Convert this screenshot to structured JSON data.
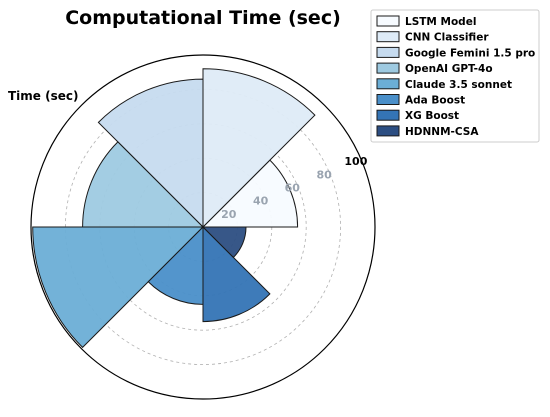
{
  "chart_data": {
    "type": "polar-bar",
    "title": "Computational Time (sec)",
    "radial_axis_label": "Time (sec)",
    "rlim": [
      0,
      100
    ],
    "radial_ticks": [
      20,
      40,
      60,
      80,
      100
    ],
    "grid": true,
    "legend_position": "top-right",
    "categories": [
      "LSTM Model",
      "CNN Classifier",
      "Google Femini 1.5 pro",
      "OpenAI GPT-4o",
      "Claude 3.5 sonnet",
      "Ada Boost",
      "XG Boost",
      "HDNNM-CSA"
    ],
    "values": [
      55,
      92,
      86,
      70,
      99,
      45,
      55,
      25
    ],
    "colors": [
      "#f7fbff",
      "#deebf7",
      "#c6dbef",
      "#9ecae1",
      "#6baed6",
      "#4a8fc9",
      "#3474b5",
      "#2c4e82"
    ]
  }
}
